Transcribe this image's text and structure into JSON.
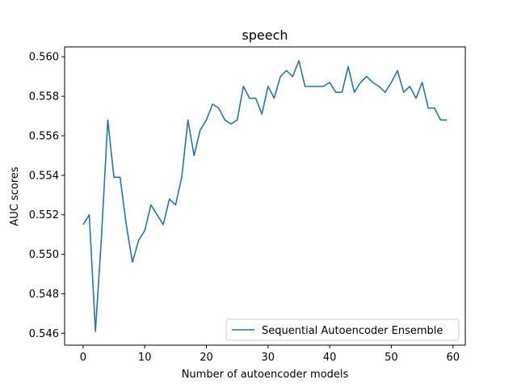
{
  "chart_data": {
    "type": "line",
    "title": "speech",
    "xlabel": "Number of autoencoder models",
    "ylabel": "AUC scores",
    "xlim": [
      -3,
      62
    ],
    "ylim": [
      0.5454,
      0.5605
    ],
    "xticks": [
      0,
      10,
      20,
      30,
      40,
      50,
      60
    ],
    "yticks": [
      0.546,
      0.548,
      0.55,
      0.552,
      0.554,
      0.556,
      0.558,
      0.56
    ],
    "ytick_labels": [
      "0.546",
      "0.548",
      "0.550",
      "0.552",
      "0.554",
      "0.556",
      "0.558",
      "0.560"
    ],
    "grid": false,
    "legend_position": "lower-right",
    "series": [
      {
        "name": "Sequential Autoencoder Ensemble",
        "color": "#1f77b4",
        "x": [
          0,
          1,
          2,
          3,
          4,
          5,
          6,
          7,
          8,
          9,
          10,
          11,
          12,
          13,
          14,
          15,
          16,
          17,
          18,
          19,
          20,
          21,
          22,
          23,
          24,
          25,
          26,
          27,
          28,
          29,
          30,
          31,
          32,
          33,
          34,
          35,
          36,
          37,
          38,
          39,
          40,
          41,
          42,
          43,
          44,
          45,
          46,
          47,
          48,
          49,
          50,
          51,
          52,
          53,
          54,
          55,
          56,
          57,
          58,
          59
        ],
        "values": [
          0.5515,
          0.552,
          0.5461,
          0.551,
          0.5568,
          0.5539,
          0.5539,
          0.5515,
          0.5496,
          0.5507,
          0.5512,
          0.5525,
          0.552,
          0.5515,
          0.5528,
          0.5525,
          0.5539,
          0.5568,
          0.555,
          0.5563,
          0.5568,
          0.5576,
          0.5574,
          0.5568,
          0.5566,
          0.5568,
          0.5585,
          0.5579,
          0.5579,
          0.5571,
          0.5585,
          0.5579,
          0.559,
          0.5593,
          0.559,
          0.5598,
          0.5585,
          0.5585,
          0.5585,
          0.5585,
          0.5587,
          0.5582,
          0.5582,
          0.5595,
          0.5582,
          0.5587,
          0.559,
          0.5587,
          0.5585,
          0.5582,
          0.5587,
          0.5593,
          0.5582,
          0.5585,
          0.5579,
          0.5587,
          0.5574,
          0.5574,
          0.5568,
          0.5568
        ]
      }
    ]
  }
}
